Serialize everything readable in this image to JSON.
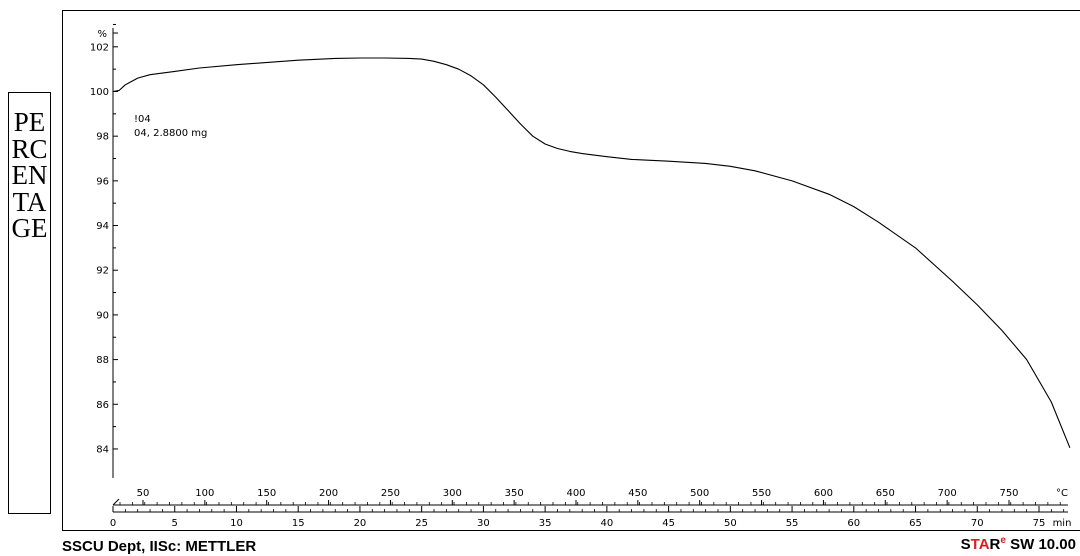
{
  "ylabel_box": {
    "text": "PERCENTAGE"
  },
  "chart_data": {
    "type": "line",
    "title": "",
    "y_unit_label": "%",
    "ylim": [
      82.7,
      103.2
    ],
    "y_ticks": [
      84,
      86,
      88,
      90,
      92,
      94,
      96,
      98,
      100,
      102
    ],
    "time_axis": {
      "unit_label": "min",
      "xlim": [
        0,
        77.8
      ],
      "ticks": [
        0,
        5,
        10,
        15,
        20,
        25,
        30,
        35,
        40,
        45,
        50,
        55,
        60,
        65,
        70,
        75
      ]
    },
    "temperature_axis": {
      "unit_label": "°C",
      "ticks": [
        50,
        100,
        150,
        200,
        250,
        300,
        350,
        400,
        450,
        500,
        550,
        600,
        650,
        700,
        750
      ]
    },
    "annotation": {
      "line1": "!04",
      "line2": "04, 2.8800 mg"
    },
    "series": [
      {
        "x": [
          0,
          0.5,
          1,
          2,
          3,
          5,
          7,
          10,
          15,
          18,
          20,
          22,
          24,
          25,
          26,
          27,
          28,
          29,
          30,
          31,
          32,
          33,
          34,
          35,
          36,
          37,
          38,
          40,
          42,
          45,
          48,
          50,
          52,
          55,
          58,
          60,
          62,
          65,
          68,
          70,
          72,
          74,
          76,
          77.5
        ],
        "y": [
          100.0,
          100.05,
          100.3,
          100.6,
          100.75,
          100.9,
          101.05,
          101.2,
          101.4,
          101.48,
          101.5,
          101.5,
          101.48,
          101.45,
          101.35,
          101.2,
          101.0,
          100.7,
          100.3,
          99.75,
          99.15,
          98.55,
          98.0,
          97.65,
          97.45,
          97.32,
          97.22,
          97.08,
          96.96,
          96.88,
          96.78,
          96.65,
          96.45,
          96.0,
          95.4,
          94.85,
          94.15,
          93.0,
          91.5,
          90.45,
          89.3,
          88.0,
          86.1,
          84.05
        ]
      }
    ]
  },
  "footer": {
    "left": "SSCU Dept, IISc: METTLER",
    "right_s": "S",
    "right_ta": "TA",
    "right_r": "R",
    "right_sup": "e",
    "right_rest": " SW 10.00"
  }
}
